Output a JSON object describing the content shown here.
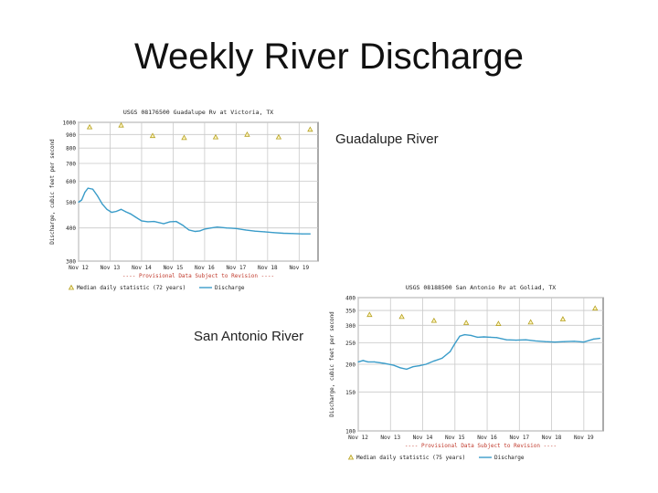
{
  "slide": {
    "title": "Weekly River Discharge",
    "caption_guadalupe": "Guadalupe River",
    "caption_san_antonio": "San Antonio River"
  },
  "colors": {
    "discharge": "#3a9cc9",
    "median_marker": "#b5a020",
    "provisional": "#c0392b",
    "grid": "#c9c9c9"
  },
  "chart_data": [
    {
      "id": "guadalupe",
      "type": "line",
      "title": "USGS 08176500 Guadalupe Rv at Victoria, TX",
      "ylabel": "Discharge, cubic feet per second",
      "yscale": "log",
      "ylim": [
        300,
        1000
      ],
      "yticks": [
        300,
        400,
        500,
        600,
        700,
        800,
        900,
        1000
      ],
      "ytick_labels": [
        "300",
        "400",
        "500",
        "600",
        "700",
        "800",
        "900",
        "1000"
      ],
      "xlim": [
        0,
        7.6
      ],
      "xticks": [
        0,
        1,
        2,
        3,
        4,
        5,
        6,
        7
      ],
      "xtick_labels": [
        "Nov 12",
        "Nov 13",
        "Nov 14",
        "Nov 15",
        "Nov 16",
        "Nov 17",
        "Nov 18",
        "Nov 19"
      ],
      "provisional_note": "---- Provisional Data Subject to Revision ----",
      "legend": {
        "median_label": "Median daily statistic (72 years)",
        "discharge_label": "Discharge"
      },
      "series": [
        {
          "name": "Discharge",
          "x": [
            0,
            0.1,
            0.2,
            0.3,
            0.45,
            0.6,
            0.75,
            0.9,
            1.05,
            1.2,
            1.35,
            1.5,
            1.65,
            1.8,
            2.0,
            2.2,
            2.4,
            2.7,
            2.9,
            3.1,
            3.3,
            3.5,
            3.7,
            3.85,
            4.0,
            4.2,
            4.4,
            4.7,
            5.0,
            5.3,
            5.6,
            5.9,
            6.2,
            6.5,
            6.8,
            7.1,
            7.35
          ],
          "y": [
            500,
            510,
            545,
            565,
            560,
            528,
            492,
            470,
            458,
            462,
            470,
            460,
            452,
            440,
            425,
            422,
            423,
            415,
            422,
            423,
            410,
            393,
            388,
            390,
            396,
            400,
            403,
            400,
            398,
            393,
            389,
            387,
            384,
            382,
            381,
            380,
            380
          ]
        },
        {
          "name": "Median daily statistic",
          "x": [
            0.35,
            1.35,
            2.35,
            3.35,
            4.35,
            5.35,
            6.35,
            7.35
          ],
          "y": [
            960,
            975,
            890,
            875,
            880,
            900,
            880,
            940
          ]
        }
      ]
    },
    {
      "id": "san_antonio",
      "type": "line",
      "title": "USGS 08188500 San Antonio Rv at Goliad, TX",
      "ylabel": "Discharge, cubic feet per second",
      "yscale": "log",
      "ylim": [
        100,
        400
      ],
      "yticks": [
        100,
        150,
        200,
        250,
        300,
        350,
        400
      ],
      "ytick_labels": [
        "100",
        "150",
        "200",
        "250",
        "300",
        "350",
        "400"
      ],
      "xlim": [
        0,
        7.6
      ],
      "xticks": [
        0,
        1,
        2,
        3,
        4,
        5,
        6,
        7
      ],
      "xtick_labels": [
        "Nov 12",
        "Nov 13",
        "Nov 14",
        "Nov 15",
        "Nov 16",
        "Nov 17",
        "Nov 18",
        "Nov 19"
      ],
      "provisional_note": "---- Provisional Data Subject to Revision ----",
      "legend": {
        "median_label": "Median daily statistic (75 years)",
        "discharge_label": "Discharge"
      },
      "series": [
        {
          "name": "Discharge",
          "x": [
            0,
            0.15,
            0.3,
            0.5,
            0.8,
            1.1,
            1.3,
            1.5,
            1.7,
            1.9,
            2.1,
            2.35,
            2.6,
            2.85,
            3.0,
            3.15,
            3.3,
            3.5,
            3.7,
            3.9,
            4.1,
            4.3,
            4.6,
            4.9,
            5.2,
            5.5,
            5.8,
            6.1,
            6.4,
            6.7,
            7.0,
            7.3,
            7.5
          ],
          "y": [
            205,
            208,
            205,
            205,
            202,
            198,
            193,
            190,
            195,
            197,
            200,
            207,
            213,
            228,
            248,
            268,
            272,
            270,
            265,
            266,
            265,
            264,
            258,
            257,
            258,
            255,
            253,
            252,
            253,
            254,
            252,
            260,
            262
          ]
        },
        {
          "name": "Median daily statistic",
          "x": [
            0.35,
            1.35,
            2.35,
            3.35,
            4.35,
            5.35,
            6.35,
            7.35
          ],
          "y": [
            335,
            328,
            315,
            308,
            305,
            310,
            320,
            358
          ]
        }
      ]
    }
  ]
}
